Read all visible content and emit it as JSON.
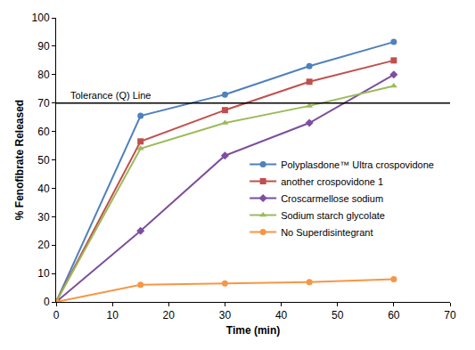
{
  "chart_data": {
    "type": "line",
    "x_label": "Time (min)",
    "y_label": "% Fenofibrate Released",
    "x": [
      0,
      15,
      30,
      45,
      60
    ],
    "series": [
      {
        "name": "Polyplasdone™ Ultra crospovidone",
        "color": "#4f81bd",
        "marker": "circle",
        "values": [
          0,
          65.5,
          73,
          83,
          91.5
        ]
      },
      {
        "name": "another crospovidone 1",
        "color": "#c0504d",
        "marker": "square",
        "values": [
          0,
          56.5,
          67.5,
          77.5,
          85
        ]
      },
      {
        "name": "Croscarmellose sodium",
        "color": "#7d4f9e",
        "marker": "diamond",
        "values": [
          0,
          25,
          51.5,
          63,
          80
        ]
      },
      {
        "name": "Sodium starch glycolate",
        "color": "#9bbb59",
        "marker": "triangle-up",
        "values": [
          0,
          54,
          63,
          69,
          76
        ]
      },
      {
        "name": "No Superdisintegrant",
        "color": "#f79646",
        "marker": "circle",
        "values": [
          0,
          6,
          6.5,
          7,
          8
        ]
      }
    ],
    "reference_line": {
      "label": "Tolerance (Q) Line",
      "y": 70
    },
    "xlim": [
      0,
      70
    ],
    "xticks": [
      0,
      10,
      20,
      30,
      40,
      50,
      60,
      70
    ],
    "ylim": [
      0,
      100
    ],
    "yticks": [
      0,
      10,
      20,
      30,
      40,
      50,
      60,
      70,
      80,
      90,
      100
    ],
    "grid": false,
    "legend": "right"
  }
}
